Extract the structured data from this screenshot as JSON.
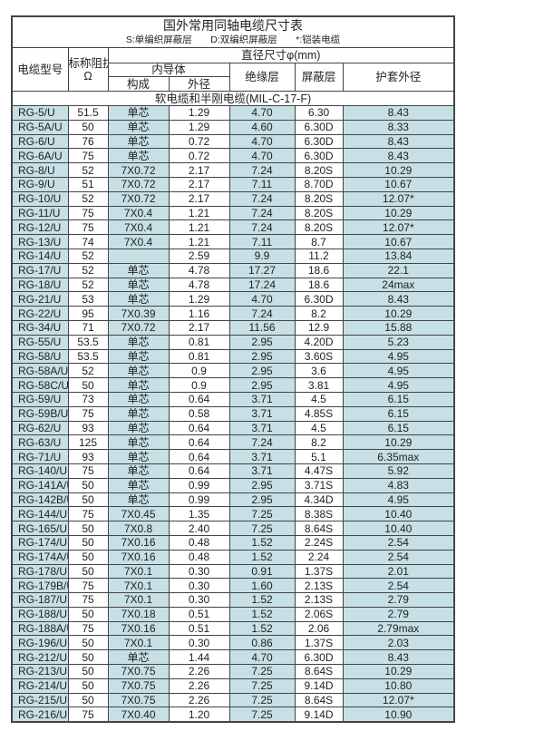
{
  "title": "国外常用同轴电缆尺寸表",
  "legend": {
    "s": "S:单编织屏蔽层",
    "d": "D:双编织屏蔽层",
    "star": "*:铠装电缆"
  },
  "headers": {
    "model": "电缆型号",
    "impedance": "标称阻抗",
    "impedance_unit": "Ω",
    "diameter": "直径尺寸φ(mm)",
    "inner": "内导体",
    "construction": "构成",
    "outer_dia": "外径",
    "insulation": "绝缘层",
    "shield": "屏蔽层",
    "jacket": "护套外径"
  },
  "section": "软电缆和半刚电缆(MIL-C-17-F)",
  "colors": {
    "shaded": "#c6e0e6",
    "border": "#444444"
  },
  "rows": [
    [
      "RG-5/U",
      "51.5",
      "单芯",
      "1.29",
      "4.70",
      "6.30",
      "8.43"
    ],
    [
      "RG-5A/U",
      "50",
      "单芯",
      "1.29",
      "4.60",
      "6.30D",
      "8.33"
    ],
    [
      "RG-6/U",
      "76",
      "单芯",
      "0.72",
      "4.70",
      "6.30D",
      "8.43"
    ],
    [
      "RG-6A/U",
      "75",
      "单芯",
      "0.72",
      "4.70",
      "6.30D",
      "8.43"
    ],
    [
      "RG-8/U",
      "52",
      "7X0.72",
      "2.17",
      "7.24",
      "8.20S",
      "10.29"
    ],
    [
      "RG-9/U",
      "51",
      "7X0.72",
      "2.17",
      "7.11",
      "8.70D",
      "10.67"
    ],
    [
      "RG-10/U",
      "52",
      "7X0.72",
      "2.17",
      "7.24",
      "8.20S",
      "12.07*"
    ],
    [
      "RG-11/U",
      "75",
      "7X0.4",
      "1.21",
      "7.24",
      "8.20S",
      "10.29"
    ],
    [
      "RG-12/U",
      "75",
      "7X0.4",
      "1.21",
      "7.24",
      "8.20S",
      "12.07*"
    ],
    [
      "RG-13/U",
      "74",
      "7X0.4",
      "1.21",
      "7.11",
      "8.7",
      "10.67"
    ],
    [
      "RG-14/U",
      "52",
      "",
      "2.59",
      "9.9",
      "11.2",
      "13.84"
    ],
    [
      "RG-17/U",
      "52",
      "单芯",
      "4.78",
      "17.27",
      "18.6",
      "22.1"
    ],
    [
      "RG-18/U",
      "52",
      "单芯",
      "4.78",
      "17.24",
      "18.6",
      "24max"
    ],
    [
      "RG-21/U",
      "53",
      "单芯",
      "1.29",
      "4.70",
      "6.30D",
      "8.43"
    ],
    [
      "RG-22/U",
      "95",
      "7X0.39",
      "1.16",
      "7.24",
      "8.2",
      "10.29"
    ],
    [
      "RG-34/U",
      "71",
      "7X0.72",
      "2.17",
      "11.56",
      "12.9",
      "15.88"
    ],
    [
      "RG-55/U",
      "53.5",
      "单芯",
      "0.81",
      "2.95",
      "4.20D",
      "5.23"
    ],
    [
      "RG-58/U",
      "53.5",
      "单芯",
      "0.81",
      "2.95",
      "3.60S",
      "4.95"
    ],
    [
      "RG-58A/U",
      "52",
      "单芯",
      "0.9",
      "2.95",
      "3.6",
      "4.95"
    ],
    [
      "RG-58C/U",
      "50",
      "单芯",
      "0.9",
      "2.95",
      "3.81",
      "4.95"
    ],
    [
      "RG-59/U",
      "73",
      "单芯",
      "0.64",
      "3.71",
      "4.5",
      "6.15"
    ],
    [
      "RG-59B/U",
      "75",
      "单芯",
      "0.58",
      "3.71",
      "4.85S",
      "6.15"
    ],
    [
      "RG-62/U",
      "93",
      "单芯",
      "0.64",
      "3.71",
      "4.5",
      "6.15"
    ],
    [
      "RG-63/U",
      "125",
      "单芯",
      "0.64",
      "7.24",
      "8.2",
      "10.29"
    ],
    [
      "RG-71/U",
      "93",
      "单芯",
      "0.64",
      "3.71",
      "5.1",
      "6.35max"
    ],
    [
      "RG-140/U",
      "75",
      "单芯",
      "0.64",
      "3.71",
      "4.47S",
      "5.92"
    ],
    [
      "RG-141A/U",
      "50",
      "单芯",
      "0.99",
      "2.95",
      "3.71S",
      "4.83"
    ],
    [
      "RG-142B/U",
      "50",
      "单芯",
      "0.99",
      "2.95",
      "4.34D",
      "4.95"
    ],
    [
      "RG-144/U",
      "75",
      "7X0.45",
      "1.35",
      "7.25",
      "8.38S",
      "10.40"
    ],
    [
      "RG-165/U",
      "50",
      "7X0.8",
      "2.40",
      "7.25",
      "8.64S",
      "10.40"
    ],
    [
      "RG-174/U",
      "50",
      "7X0.16",
      "0.48",
      "1.52",
      "2.24S",
      "2.54"
    ],
    [
      "RG-174A/U",
      "50",
      "7X0.16",
      "0.48",
      "1.52",
      "2.24",
      "2.54"
    ],
    [
      "RG-178/U",
      "50",
      "7X0.1",
      "0.30",
      "0.91",
      "1.37S",
      "2.01"
    ],
    [
      "RG-179B/U",
      "75",
      "7X0.1",
      "0.30",
      "1.60",
      "2.13S",
      "2.54"
    ],
    [
      "RG-187/U",
      "75",
      "7X0.1",
      "0.30",
      "1.52",
      "2.13S",
      "2.79"
    ],
    [
      "RG-188/U",
      "50",
      "7X0.18",
      "0.51",
      "1.52",
      "2.06S",
      "2.79"
    ],
    [
      "RG-188A/U",
      "75",
      "7X0.16",
      "0.51",
      "1.52",
      "2.06",
      "2.79max"
    ],
    [
      "RG-196/U",
      "50",
      "7X0.1",
      "0.30",
      "0.86",
      "1.37S",
      "2.03"
    ],
    [
      "RG-212/U",
      "50",
      "单芯",
      "1.44",
      "4.70",
      "6.30D",
      "8.43"
    ],
    [
      "RG-213/U",
      "50",
      "7X0.75",
      "2.26",
      "7.25",
      "8.64S",
      "10.29"
    ],
    [
      "RG-214/U",
      "50",
      "7X0.75",
      "2.26",
      "7.25",
      "9.14D",
      "10.80"
    ],
    [
      "RG-215/U",
      "50",
      "7X0.75",
      "2.26",
      "7.25",
      "8.64S",
      "12.07*"
    ],
    [
      "RG-216/U",
      "75",
      "7X0.40",
      "1.20",
      "7.25",
      "9.14D",
      "10.90"
    ]
  ]
}
